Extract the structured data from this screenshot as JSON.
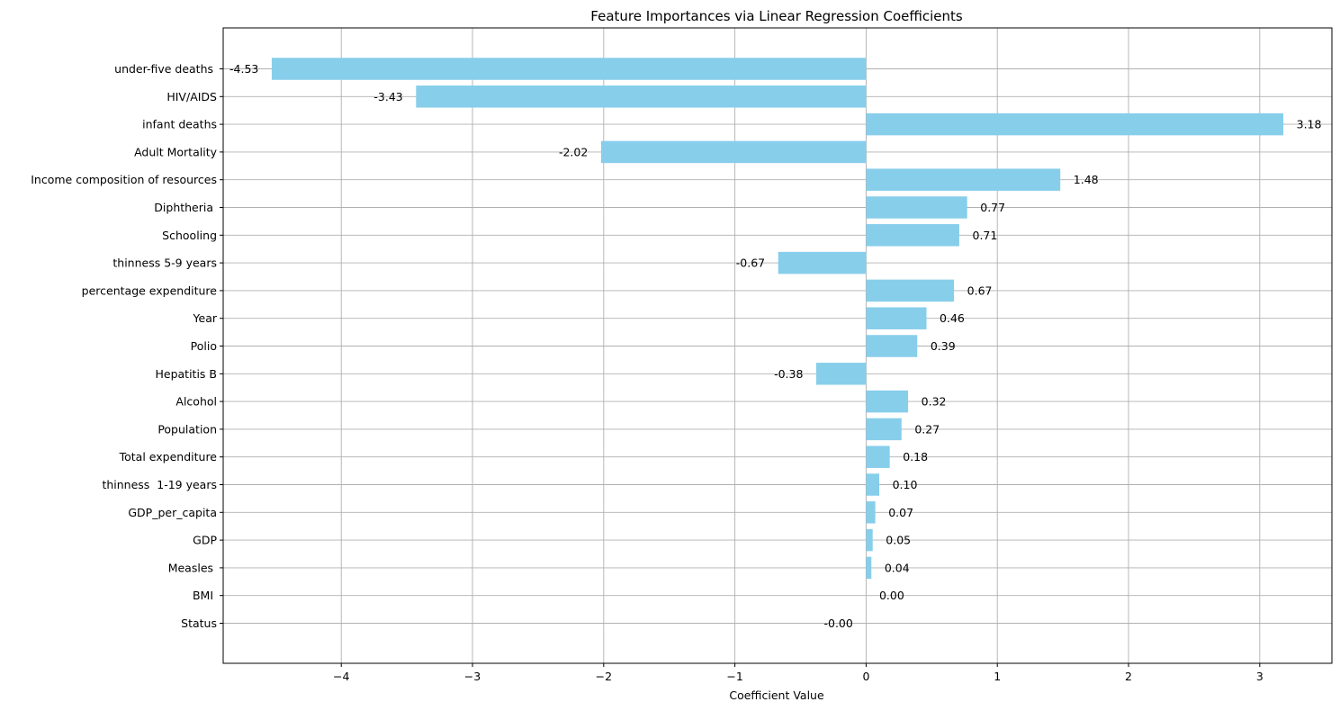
{
  "chart_data": {
    "type": "bar",
    "orientation": "horizontal",
    "title": "Feature Importances via Linear Regression Coefficients",
    "xlabel": "Coefficient Value",
    "ylabel": "",
    "xlim": [
      -4.9,
      3.55
    ],
    "xticks": [
      -4,
      -3,
      -2,
      -1,
      0,
      1,
      2,
      3
    ],
    "xtick_labels": [
      "−4",
      "−3",
      "−2",
      "−1",
      "0",
      "1",
      "2",
      "3"
    ],
    "grid": true,
    "bar_color": "#87ceeb",
    "categories": [
      "under-five deaths ",
      " HIV/AIDS",
      "infant deaths",
      "Adult Mortality",
      "Income composition of resources",
      "Diphtheria ",
      "Schooling",
      " thinness 5-9 years",
      "percentage expenditure",
      "Year",
      "Polio",
      "Hepatitis B",
      "Alcohol",
      "Population",
      "Total expenditure",
      " thinness  1-19 years",
      "GDP_per_capita",
      "GDP",
      "Measles ",
      " BMI ",
      "Status"
    ],
    "values": [
      -4.53,
      -3.43,
      3.18,
      -2.02,
      1.48,
      0.77,
      0.71,
      -0.67,
      0.67,
      0.46,
      0.39,
      -0.38,
      0.32,
      0.27,
      0.18,
      0.1,
      0.07,
      0.05,
      0.04,
      0.0,
      -0.0
    ],
    "value_labels": [
      "-4.53",
      "-3.43",
      "3.18",
      "-2.02",
      "1.48",
      "0.77",
      "0.71",
      "-0.67",
      "0.67",
      "0.46",
      "0.39",
      "-0.38",
      "0.32",
      "0.27",
      "0.18",
      "0.10",
      "0.07",
      "0.05",
      "0.04",
      "0.00",
      "-0.00"
    ]
  }
}
